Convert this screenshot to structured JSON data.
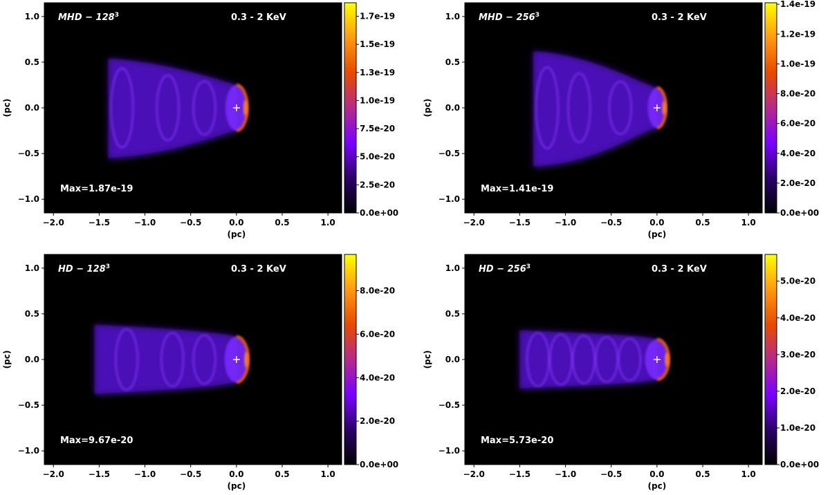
{
  "chart_data": [
    {
      "type": "heatmap",
      "title": "MHD − 128³",
      "title_main": "MHD − 128",
      "title_sup": "3",
      "band_label": "0.3 - 2 KeV",
      "max_label": "Max=1.87e-19",
      "max_value": 1.87e-19,
      "xlabel": "(pc)",
      "ylabel": "(pc)",
      "xlim": [
        -2.1,
        1.15
      ],
      "ylim": [
        -1.15,
        1.15
      ],
      "xticks": [
        "−2.0",
        "−1.5",
        "−1.0",
        "−0.5",
        "0.0",
        "0.5",
        "1.0"
      ],
      "xtick_values": [
        -2.0,
        -1.5,
        -1.0,
        -0.5,
        0.0,
        0.5,
        1.0
      ],
      "yticks": [
        "1.0",
        "0.5",
        "0.0",
        "−0.5",
        "−1.0"
      ],
      "ytick_values": [
        1.0,
        0.5,
        0.0,
        -0.5,
        -1.0
      ],
      "colorbar": {
        "min": 0,
        "max": 1.87e-19,
        "ticks": [
          "0.0e+00",
          "2.5e-20",
          "5.0e-20",
          "7.5e-20",
          "1.0e-19",
          "1.3e-19",
          "1.5e-19",
          "1.7e-19"
        ],
        "tick_values": [
          0,
          2.5e-20,
          5e-20,
          7.5e-20,
          1e-19,
          1.25e-19,
          1.5e-19,
          1.75e-19
        ]
      },
      "source_marker": [
        0.0,
        0.0
      ],
      "tail": {
        "front": 0.12,
        "shock": 0.0,
        "back": -1.4,
        "half_width_front": 0.25,
        "half_width_back": 0.48,
        "rings": [
          -0.35,
          -0.75,
          -1.25
        ],
        "asym": 0.06
      }
    },
    {
      "type": "heatmap",
      "title": "MHD − 256³",
      "title_main": "MHD − 256",
      "title_sup": "3",
      "band_label": "0.3 - 2 KeV",
      "max_label": "Max=1.41e-19",
      "max_value": 1.41e-19,
      "xlabel": "(pc)",
      "ylabel": "(pc)",
      "xlim": [
        -2.1,
        1.15
      ],
      "ylim": [
        -1.15,
        1.15
      ],
      "xticks": [
        "−2.0",
        "−1.5",
        "−1.0",
        "−0.5",
        "0.0",
        "0.5",
        "1.0"
      ],
      "xtick_values": [
        -2.0,
        -1.5,
        -1.0,
        -0.5,
        0.0,
        0.5,
        1.0
      ],
      "yticks": [
        "1.0",
        "0.5",
        "0.0",
        "−0.5",
        "−1.0"
      ],
      "ytick_values": [
        1.0,
        0.5,
        0.0,
        -0.5,
        -1.0
      ],
      "colorbar": {
        "min": 0,
        "max": 1.41e-19,
        "ticks": [
          "0.0e+00",
          "2.0e-20",
          "4.0e-20",
          "6.0e-20",
          "8.0e-20",
          "1.0e-19",
          "1.2e-19",
          "1.4e-19"
        ],
        "tick_values": [
          0,
          2e-20,
          4e-20,
          6e-20,
          8e-20,
          1e-19,
          1.2e-19,
          1.4e-19
        ]
      },
      "source_marker": [
        0.0,
        0.0
      ],
      "tail": {
        "front": 0.1,
        "shock": 0.0,
        "back": -1.35,
        "half_width_front": 0.22,
        "half_width_back": 0.5,
        "rings": [
          -0.4,
          -0.85,
          -1.2
        ],
        "asym": 0.12
      }
    },
    {
      "type": "heatmap",
      "title": "HD − 128³",
      "title_main": "HD − 128",
      "title_sup": "3",
      "band_label": "0.3 - 2 KeV",
      "max_label": "Max=9.67e-20",
      "max_value": 9.67e-20,
      "xlabel": "(pc)",
      "ylabel": "(pc)",
      "xlim": [
        -2.1,
        1.15
      ],
      "ylim": [
        -1.15,
        1.15
      ],
      "xticks": [
        "−2.0",
        "−1.5",
        "−1.0",
        "−0.5",
        "0.0",
        "0.5",
        "1.0"
      ],
      "xtick_values": [
        -2.0,
        -1.5,
        -1.0,
        -0.5,
        0.0,
        0.5,
        1.0
      ],
      "yticks": [
        "1.0",
        "0.5",
        "0.0",
        "−0.5",
        "−1.0"
      ],
      "ytick_values": [
        1.0,
        0.5,
        0.0,
        -0.5,
        -1.0
      ],
      "colorbar": {
        "min": 0,
        "max": 9.67e-20,
        "ticks": [
          "0.0e+00",
          "2.0e-20",
          "4.0e-20",
          "6.0e-20",
          "8.0e-20"
        ],
        "tick_values": [
          0,
          2e-20,
          4e-20,
          6e-20,
          8e-20
        ]
      },
      "source_marker": [
        0.0,
        0.0
      ],
      "tail": {
        "front": 0.13,
        "shock": 0.0,
        "back": -1.55,
        "half_width_front": 0.25,
        "half_width_back": 0.38,
        "rings": [
          -0.35,
          -0.7,
          -1.2
        ],
        "asym": 0.0
      }
    },
    {
      "type": "heatmap",
      "title": "HD − 256³",
      "title_main": "HD − 256",
      "title_sup": "3",
      "band_label": "0.3 - 2 KeV",
      "max_label": "Max=5.73e-20",
      "max_value": 5.73e-20,
      "xlabel": "(pc)",
      "ylabel": "(pc)",
      "xlim": [
        -2.1,
        1.15
      ],
      "ylim": [
        -1.15,
        1.15
      ],
      "xticks": [
        "−2.0",
        "−1.5",
        "−1.0",
        "−0.5",
        "0.0",
        "0.5",
        "1.0"
      ],
      "xtick_values": [
        -2.0,
        -1.5,
        -1.0,
        -0.5,
        0.0,
        0.5,
        1.0
      ],
      "yticks": [
        "1.0",
        "0.5",
        "0.0",
        "−0.5",
        "−1.0"
      ],
      "ytick_values": [
        1.0,
        0.5,
        0.0,
        -0.5,
        -1.0
      ],
      "colorbar": {
        "min": 0,
        "max": 5.73e-20,
        "ticks": [
          "0.0e+00",
          "1.0e-20",
          "2.0e-20",
          "3.0e-20",
          "4.0e-20",
          "5.0e-20"
        ],
        "tick_values": [
          0,
          1e-20,
          2e-20,
          3e-20,
          4e-20,
          5e-20
        ]
      },
      "source_marker": [
        0.0,
        0.0
      ],
      "tail": {
        "front": 0.13,
        "shock": 0.0,
        "back": -1.5,
        "half_width_front": 0.22,
        "half_width_back": 0.32,
        "rings": [
          -0.3,
          -0.55,
          -0.8,
          -1.05,
          -1.3
        ],
        "asym": 0.0
      }
    }
  ],
  "colormap": {
    "name": "gnuplot2-like",
    "stops": [
      "#000000",
      "#2a0066",
      "#7a00ff",
      "#b52a8a",
      "#e84a00",
      "#ff9a10",
      "#ffff00"
    ]
  },
  "marker_color": "#ffffff"
}
